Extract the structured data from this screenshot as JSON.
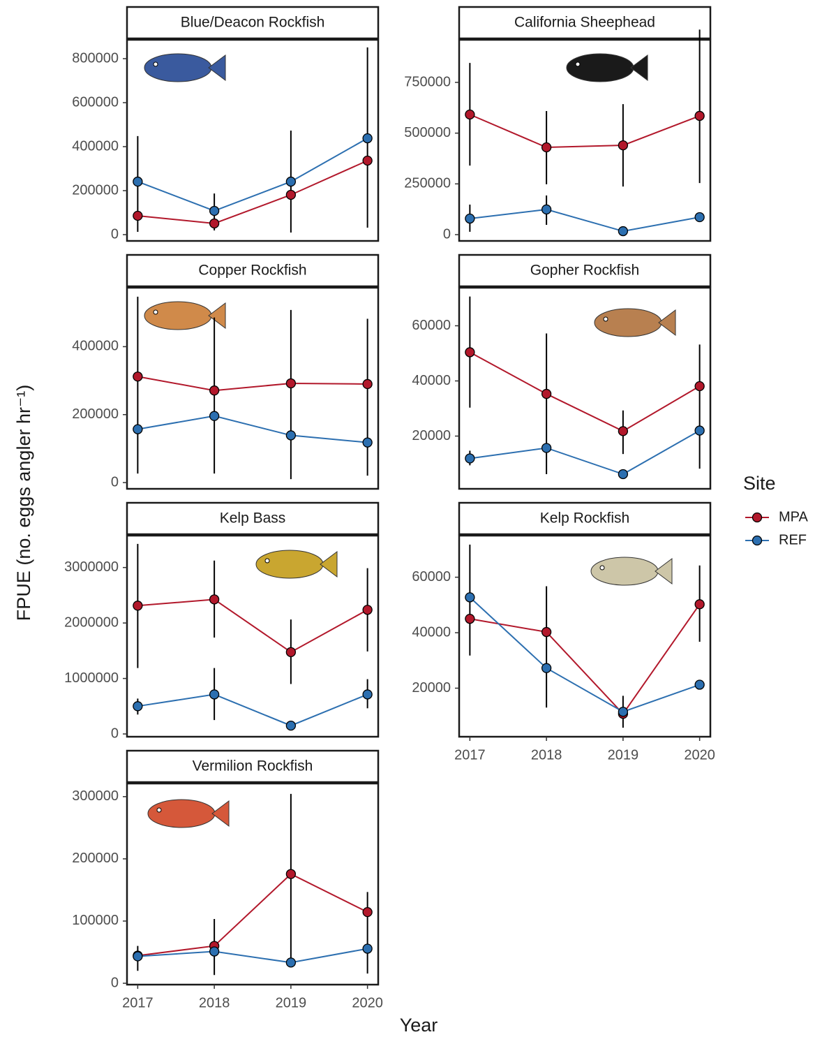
{
  "y_label": "FPUE (no. eggs angler hr⁻¹)",
  "x_label": "Year",
  "legend_title": "Site",
  "chart_data": [
    {
      "type": "line",
      "title": "Blue/Deacon Rockfish",
      "x": [
        2017,
        2018,
        2019,
        2020
      ],
      "xlim": [
        2016.86,
        2020.14
      ],
      "ylim": [
        -28600,
        885700
      ],
      "yticks": [
        0,
        200000,
        400000,
        600000,
        800000
      ],
      "series": [
        {
          "name": "MPA",
          "color": "#b2182b",
          "values": [
            85700,
            50800,
            181000,
            336500
          ],
          "lower": [
            null,
            null,
            null,
            null
          ],
          "upper": [
            null,
            null,
            null,
            null
          ]
        },
        {
          "name": "REF",
          "color": "#2c6fb0",
          "values": [
            241000,
            108000,
            241000,
            438000
          ],
          "lower": [
            12700,
            19000,
            9500,
            31700
          ],
          "upper": [
            448000,
            187000,
            473000,
            851000
          ]
        }
      ]
    },
    {
      "type": "line",
      "title": "California Sheephead",
      "x": [
        2017,
        2018,
        2019,
        2020
      ],
      "xlim": [
        2016.86,
        2020.14
      ],
      "ylim": [
        -31000,
        959800
      ],
      "yticks": [
        0,
        250000,
        500000,
        750000
      ],
      "series": [
        {
          "name": "MPA",
          "color": "#b2182b",
          "values": [
            591700,
            430000,
            440000,
            585000
          ],
          "lower": [
            340000,
            248000,
            237000,
            254000
          ],
          "upper": [
            846000,
            609000,
            643000,
            1010000
          ]
        },
        {
          "name": "REF",
          "color": "#2c6fb0",
          "values": [
            79000,
            124000,
            17000,
            86000
          ],
          "lower": [
            14000,
            48000,
            null,
            null
          ],
          "upper": [
            148000,
            193000,
            null,
            null
          ]
        }
      ]
    },
    {
      "type": "line",
      "title": "Copper Rockfish",
      "x": [
        2017,
        2018,
        2019,
        2020
      ],
      "xlim": [
        2016.86,
        2020.14
      ],
      "ylim": [
        -18400,
        573500
      ],
      "yticks": [
        0,
        200000,
        400000
      ],
      "series": [
        {
          "name": "MPA",
          "color": "#b2182b",
          "values": [
            312000,
            271000,
            292000,
            290000
          ],
          "lower": [
            26500,
            26500,
            10200,
            20400
          ],
          "upper": [
            547000,
            486000,
            508000,
            482000
          ]
        },
        {
          "name": "REF",
          "color": "#2c6fb0",
          "values": [
            157000,
            196000,
            139000,
            118000
          ],
          "lower": [
            null,
            null,
            null,
            null
          ],
          "upper": [
            null,
            null,
            null,
            null
          ]
        }
      ]
    },
    {
      "type": "line",
      "title": "Gopher Rockfish",
      "x": [
        2017,
        2018,
        2019,
        2020
      ],
      "xlim": [
        2016.86,
        2020.14
      ],
      "ylim": [
        880,
        73800
      ],
      "yticks": [
        20000,
        40000,
        60000
      ],
      "series": [
        {
          "name": "MPA",
          "color": "#b2182b",
          "values": [
            50400,
            35300,
            21800,
            38100
          ],
          "lower": [
            30300,
            6200,
            13500,
            8200
          ],
          "upper": [
            70600,
            57200,
            29300,
            53200
          ]
        },
        {
          "name": "REF",
          "color": "#2c6fb0",
          "values": [
            11900,
            15700,
            6200,
            22000
          ],
          "lower": [
            9400,
            null,
            null,
            null
          ],
          "upper": [
            14700,
            null,
            null,
            null
          ]
        }
      ]
    },
    {
      "type": "line",
      "title": "Kelp Bass",
      "x": [
        2017,
        2018,
        2019,
        2020
      ],
      "xlim": [
        2016.86,
        2020.14
      ],
      "ylim": [
        -50000,
        3575000
      ],
      "yticks": [
        0,
        1000000,
        2000000,
        3000000
      ],
      "series": [
        {
          "name": "MPA",
          "color": "#b2182b",
          "values": [
            2312500,
            2425000,
            1475000,
            2237500
          ],
          "lower": [
            1187500,
            1737500,
            900000,
            1487500
          ],
          "upper": [
            3425000,
            3125000,
            2062500,
            2987500
          ]
        },
        {
          "name": "REF",
          "color": "#2c6fb0",
          "values": [
            500000,
            712500,
            150000,
            712500
          ],
          "lower": [
            350000,
            250000,
            null,
            462500
          ],
          "upper": [
            637500,
            1187500,
            null,
            987500
          ]
        }
      ]
    },
    {
      "type": "line",
      "title": "Kelp Rockfish",
      "x": [
        2017,
        2018,
        2019,
        2020
      ],
      "xlim": [
        2016.86,
        2020.14
      ],
      "xticks": [
        2017,
        2018,
        2019,
        2020
      ],
      "ylim": [
        2500,
        75000
      ],
      "yticks": [
        20000,
        40000,
        60000
      ],
      "series": [
        {
          "name": "MPA",
          "color": "#b2182b",
          "values": [
            45000,
            40250,
            10750,
            50250
          ],
          "lower": [
            null,
            null,
            5750,
            36750
          ],
          "upper": [
            null,
            null,
            17250,
            64250
          ]
        },
        {
          "name": "REF",
          "color": "#2c6fb0",
          "values": [
            52750,
            27250,
            11500,
            21250
          ],
          "lower": [
            31750,
            13000,
            null,
            null
          ],
          "upper": [
            71750,
            56750,
            null,
            null
          ]
        }
      ]
    },
    {
      "type": "line",
      "title": "Vermilion Rockfish",
      "x": [
        2017,
        2018,
        2019,
        2020
      ],
      "xlim": [
        2016.86,
        2020.14
      ],
      "xticks": [
        2017,
        2018,
        2019,
        2020
      ],
      "ylim": [
        -2200,
        321100
      ],
      "yticks": [
        0,
        100000,
        200000,
        300000
      ],
      "series": [
        {
          "name": "MPA",
          "color": "#b2182b",
          "values": [
            44400,
            60000,
            175600,
            114400
          ],
          "lower": [
            null,
            13300,
            40000,
            15600
          ],
          "upper": [
            null,
            103300,
            304400,
            146700
          ]
        },
        {
          "name": "REF",
          "color": "#2c6fb0",
          "values": [
            43300,
            51100,
            33300,
            55600
          ],
          "lower": [
            20000,
            null,
            null,
            null
          ],
          "upper": [
            60000,
            null,
            null,
            null
          ]
        }
      ]
    }
  ]
}
